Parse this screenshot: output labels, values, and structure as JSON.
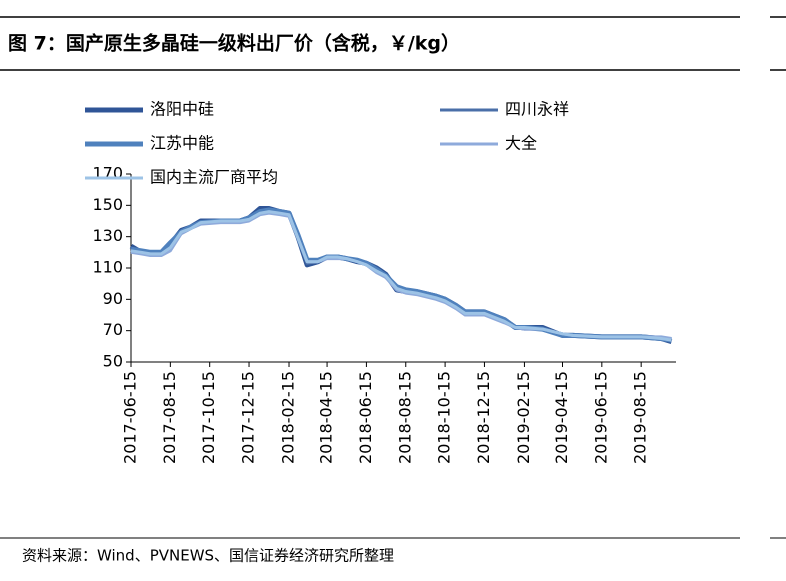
{
  "chart_data": {
    "type": "line",
    "title": "图 7：国产原生多晶硅一级料出厂价（含税，￥/kg）",
    "source": "资料来源：Wind、PVNEWS、国信证券经济研究所整理",
    "x": [
      "2017-06-15",
      "2017-07-01",
      "2017-07-15",
      "2017-08-01",
      "2017-08-15",
      "2017-09-01",
      "2017-09-15",
      "2017-10-01",
      "2017-11-01",
      "2017-12-01",
      "2017-12-15",
      "2018-01-01",
      "2018-01-15",
      "2018-02-01",
      "2018-02-15",
      "2018-03-01",
      "2018-03-15",
      "2018-04-01",
      "2018-04-15",
      "2018-05-01",
      "2018-05-15",
      "2018-06-01",
      "2018-06-15",
      "2018-07-01",
      "2018-07-15",
      "2018-08-01",
      "2018-08-15",
      "2018-09-01",
      "2018-10-01",
      "2018-10-15",
      "2018-11-01",
      "2018-11-15",
      "2018-12-15",
      "2019-01-15",
      "2019-02-01",
      "2019-02-15",
      "2019-03-15",
      "2019-04-15",
      "2019-05-01",
      "2019-06-15",
      "2019-08-15",
      "2019-09-15",
      "2019-10-01"
    ],
    "series": [
      {
        "name": "洛阳中硅",
        "color": "#2f5597",
        "values": [
          124,
          120,
          119,
          119,
          125,
          134,
          136,
          140,
          140,
          140,
          142,
          148,
          148,
          146,
          145,
          130,
          112,
          114,
          117,
          117,
          116,
          114,
          113,
          110,
          106,
          96,
          95,
          95,
          92,
          90,
          86,
          82,
          82,
          77,
          72,
          72,
          72,
          67,
          67,
          66,
          66,
          65,
          63
        ]
      },
      {
        "name": "四川永祥",
        "color": "#4a6fa8",
        "values": [
          121,
          120,
          119,
          119,
          124,
          132,
          135,
          139,
          140,
          140,
          141,
          145,
          146,
          145,
          144,
          128,
          113,
          114,
          117,
          117,
          116,
          114,
          112,
          108,
          104,
          97,
          95,
          94,
          91,
          89,
          85,
          81,
          81,
          76,
          72,
          71,
          71,
          68,
          67,
          66,
          66,
          65,
          64
        ]
      },
      {
        "name": "江苏中能",
        "color": "#4f81bd",
        "values": [
          122,
          121,
          120,
          120,
          126,
          133,
          136,
          139,
          140,
          140,
          142,
          146,
          147,
          146,
          145,
          131,
          115,
          115,
          117,
          117,
          116,
          115,
          113,
          109,
          105,
          98,
          96,
          95,
          92,
          90,
          86,
          82,
          82,
          77,
          72,
          72,
          71,
          67,
          67,
          66,
          66,
          65,
          64
        ]
      },
      {
        "name": "大全",
        "color": "#8eaadb",
        "values": [
          120,
          119,
          118,
          118,
          121,
          132,
          135,
          138,
          139,
          139,
          140,
          144,
          145,
          144,
          143,
          129,
          114,
          114,
          116,
          116,
          116,
          114,
          112,
          107,
          104,
          96,
          94,
          93,
          90,
          88,
          84,
          80,
          80,
          75,
          72,
          71,
          71,
          68,
          67,
          66,
          66,
          66,
          65
        ]
      },
      {
        "name": "国内主流厂商平均",
        "color": "#9dc3e6",
        "values": [
          121,
          120,
          119,
          119,
          123,
          133,
          135,
          139,
          140,
          140,
          141,
          145,
          146,
          145,
          144,
          129,
          114,
          114,
          117,
          117,
          116,
          114,
          112,
          108,
          105,
          97,
          95,
          94,
          91,
          89,
          85,
          81,
          81,
          76,
          72,
          72,
          71,
          68,
          67,
          66,
          66,
          65,
          64
        ]
      }
    ],
    "xlim": [
      "2017-06-15",
      "2019-10-08"
    ],
    "xticks": [
      "2017-06-15",
      "2017-08-15",
      "2017-10-15",
      "2017-12-15",
      "2018-02-15",
      "2018-04-15",
      "2018-06-15",
      "2018-08-15",
      "2018-10-15",
      "2018-12-15",
      "2019-02-15",
      "2019-04-15",
      "2019-06-15",
      "2019-08-15"
    ],
    "ylim": [
      50,
      170
    ],
    "yticks": [
      50,
      70,
      90,
      110,
      130,
      150,
      170
    ]
  }
}
